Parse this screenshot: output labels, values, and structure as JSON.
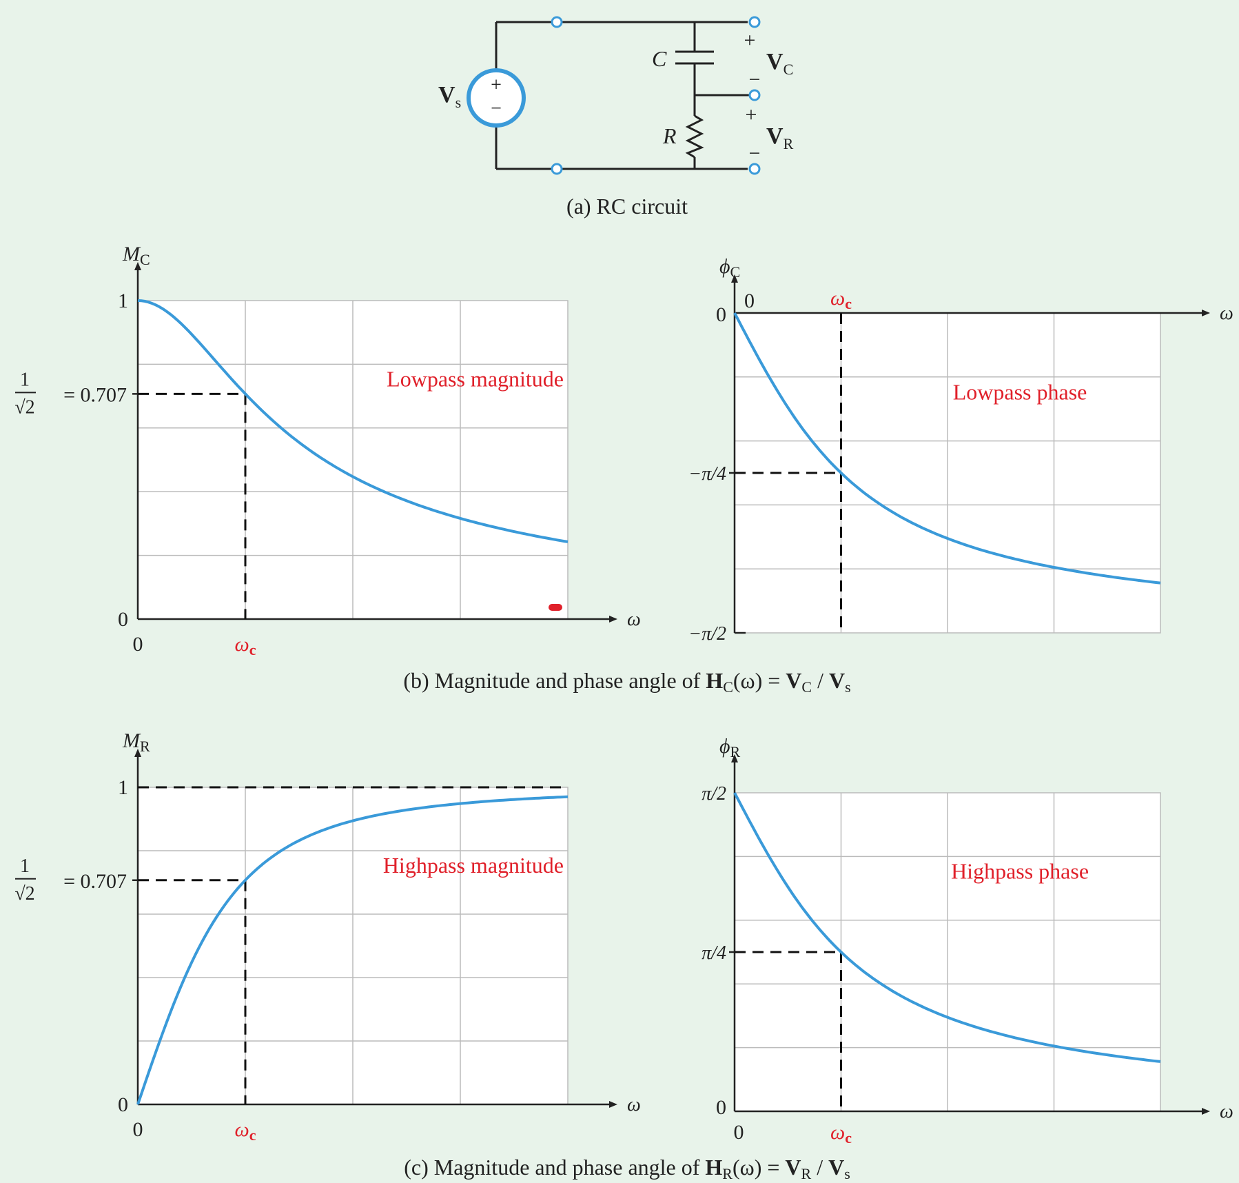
{
  "colors": {
    "background": "#e8f3ea",
    "curve": "#3a9ad9",
    "annotation": "#e0202a",
    "axis": "#222222",
    "grid": "#bbbbbb",
    "terminal": "#3a9ad9"
  },
  "circuit": {
    "source_label": "V",
    "source_sub": "s",
    "plus": "+",
    "minus": "−",
    "cap_label": "C",
    "res_label": "R",
    "vc_label": "V",
    "vc_sub": "C",
    "vr_label": "V",
    "vr_sub": "R",
    "caption": "(a) RC circuit"
  },
  "captions": {
    "b_prefix": "(b) Magnitude and phase angle of ",
    "b_H": "H",
    "b_Hsub": "C",
    "b_omega": "(ω) = ",
    "b_V1": "V",
    "b_V1sub": "C",
    "b_slash": " / ",
    "b_V2": "V",
    "b_V2sub": "s",
    "c_prefix": "(c) Magnitude and phase angle of ",
    "c_H": "H",
    "c_Hsub": "R",
    "c_omega": "(ω) = ",
    "c_V1": "V",
    "c_V1sub": "R",
    "c_slash": " / ",
    "c_V2": "V",
    "c_V2sub": "s"
  },
  "chart_data": [
    {
      "id": "lowpass-magnitude",
      "type": "line",
      "title": "Lowpass magnitude",
      "ylabel": "M",
      "ylabel_sub": "C",
      "xlabel": "ω",
      "x_tick_labels": [
        "0",
        "ω",
        "c"
      ],
      "y_tick_labels": [
        "1",
        "= 0.707",
        "0"
      ],
      "fraction_top": "1",
      "fraction_bottom": "√2",
      "xlim": [
        0,
        4
      ],
      "ylim": [
        0,
        1
      ],
      "grid": true,
      "annotation": {
        "x": 1,
        "y": 0.707
      },
      "series": [
        {
          "x": [
            0,
            0.5,
            1,
            1.5,
            2,
            2.5,
            3,
            3.5,
            4
          ],
          "values": [
            1,
            0.894,
            0.707,
            0.555,
            0.447,
            0.371,
            0.316,
            0.275,
            0.243
          ]
        }
      ]
    },
    {
      "id": "lowpass-phase",
      "type": "line",
      "title": "Lowpass phase",
      "ylabel": "ϕ",
      "ylabel_sub": "C",
      "xlabel": "ω",
      "x_tick_labels": [
        "0",
        "ω",
        "c"
      ],
      "y_tick_labels": [
        "0",
        "−π/4",
        "−π/2"
      ],
      "xlim": [
        0,
        4
      ],
      "ylim": [
        -90,
        0
      ],
      "grid": true,
      "annotation": {
        "x": 1,
        "y": -45
      },
      "series": [
        {
          "x": [
            0,
            0.5,
            1,
            1.5,
            2,
            2.5,
            3,
            3.5,
            4
          ],
          "values": [
            0,
            -26.6,
            -45,
            -56.3,
            -63.4,
            -68.2,
            -71.6,
            -74.1,
            -76
          ]
        }
      ]
    },
    {
      "id": "highpass-magnitude",
      "type": "line",
      "title": "Highpass magnitude",
      "ylabel": "M",
      "ylabel_sub": "R",
      "xlabel": "ω",
      "x_tick_labels": [
        "0",
        "ω",
        "c"
      ],
      "y_tick_labels": [
        "1",
        "= 0.707",
        "0"
      ],
      "fraction_top": "1",
      "fraction_bottom": "√2",
      "xlim": [
        0,
        4
      ],
      "ylim": [
        0,
        1
      ],
      "grid": true,
      "annotation": {
        "x": 1,
        "y": 0.707
      },
      "series": [
        {
          "x": [
            0,
            0.5,
            1,
            1.5,
            2,
            2.5,
            3,
            3.5,
            4
          ],
          "values": [
            0,
            0.447,
            0.707,
            0.832,
            0.894,
            0.928,
            0.949,
            0.962,
            0.97
          ]
        }
      ]
    },
    {
      "id": "highpass-phase",
      "type": "line",
      "title": "Highpass phase",
      "ylabel": "ϕ",
      "ylabel_sub": "R",
      "xlabel": "ω",
      "x_tick_labels": [
        "0",
        "ω",
        "c"
      ],
      "y_tick_labels": [
        "π/2",
        "π/4",
        "0"
      ],
      "xlim": [
        0,
        4
      ],
      "ylim": [
        0,
        90
      ],
      "grid": true,
      "annotation": {
        "x": 1,
        "y": 45
      },
      "series": [
        {
          "x": [
            0,
            0.5,
            1,
            1.5,
            2,
            2.5,
            3,
            3.5,
            4
          ],
          "values": [
            90,
            63.4,
            45,
            33.7,
            26.6,
            21.8,
            18.4,
            15.9,
            14
          ]
        }
      ]
    }
  ]
}
